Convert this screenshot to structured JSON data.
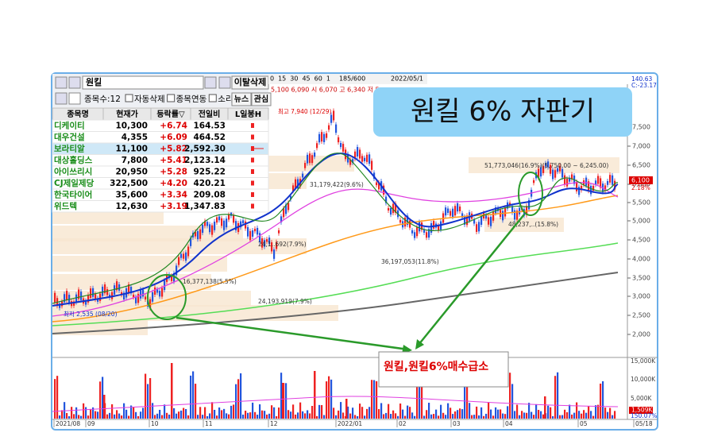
{
  "banner": {
    "title": "원킬 6% 자판기"
  },
  "toolbar": {
    "search": "원킬",
    "delete_button": "이탈삭제",
    "count": "종목수:12",
    "options": [
      "자동삭제",
      "종목연동",
      "소리"
    ],
    "buttons": [
      "뉴스",
      "관심"
    ]
  },
  "chart_toolbar": {
    "periods": [
      "0",
      "15",
      "30",
      "45",
      "60",
      "1"
    ],
    "range": "185/600",
    "date": "2022/05/1",
    "quote": "5,100   6,090  시 6,070  고 6,340  저 5,"
  },
  "table": {
    "header": [
      "종목명",
      "현재가",
      "등락률▽",
      "전일비",
      "L일봉H"
    ],
    "rows": [
      [
        "디케이티",
        "10,300",
        "+6.74",
        "164.53"
      ],
      [
        "대우건설",
        "4,355",
        "+6.09",
        "464.52"
      ],
      [
        "보라티알",
        "11,100",
        "+5.82",
        "2,592.30"
      ],
      [
        "대상홀딩스",
        "7,800",
        "+5.41",
        "2,123.14"
      ],
      [
        "아이쓰리시",
        "20,950",
        "+5.28",
        "925.22"
      ],
      [
        "CJ제일제당",
        "322,500",
        "+4.20",
        "420.21"
      ],
      [
        "한국타이어",
        "35,600",
        "+3.34",
        "209.08"
      ],
      [
        "위드텍",
        "12,630",
        "+3.19",
        "1,347.83"
      ]
    ]
  },
  "chart": {
    "high_label": "최고 7,940 (12/29)",
    "low_label": "최저 2,535 (08/20)",
    "profile_labels": [
      "51,773,046(16.9%)(5,750.00 ~ 6,245.00)",
      "31,179,422(9.6%)",
      "24,1..692(7.9%)",
      "16,377,138(5.5%)",
      "36,197,053(11.8%)",
      "48,237,..(15.8%)",
      "24,193,919(7.9%)"
    ],
    "indicator_labels": [
      "140.63",
      "C:-23.17"
    ],
    "price_axis": [
      "7,500",
      "7,000",
      "6,500",
      "6,000",
      "5,500",
      "5,000",
      "4,500",
      "4,000",
      "3,500",
      "3,000",
      "2,500",
      "2,000"
    ],
    "current_price": "6,100",
    "current_change": "2.18%",
    "volume_axis": [
      "15,000K",
      "10,000K",
      "5,000K"
    ],
    "current_volume": "1,509K",
    "volume_ratio": "150.07%",
    "dates": [
      "2021/08",
      "09",
      "10",
      "11",
      "12",
      "2022/01",
      "02",
      "03",
      "04",
      "05",
      "05/18"
    ]
  },
  "annotation": {
    "text": "원킬,원킬6%매수급소"
  }
}
